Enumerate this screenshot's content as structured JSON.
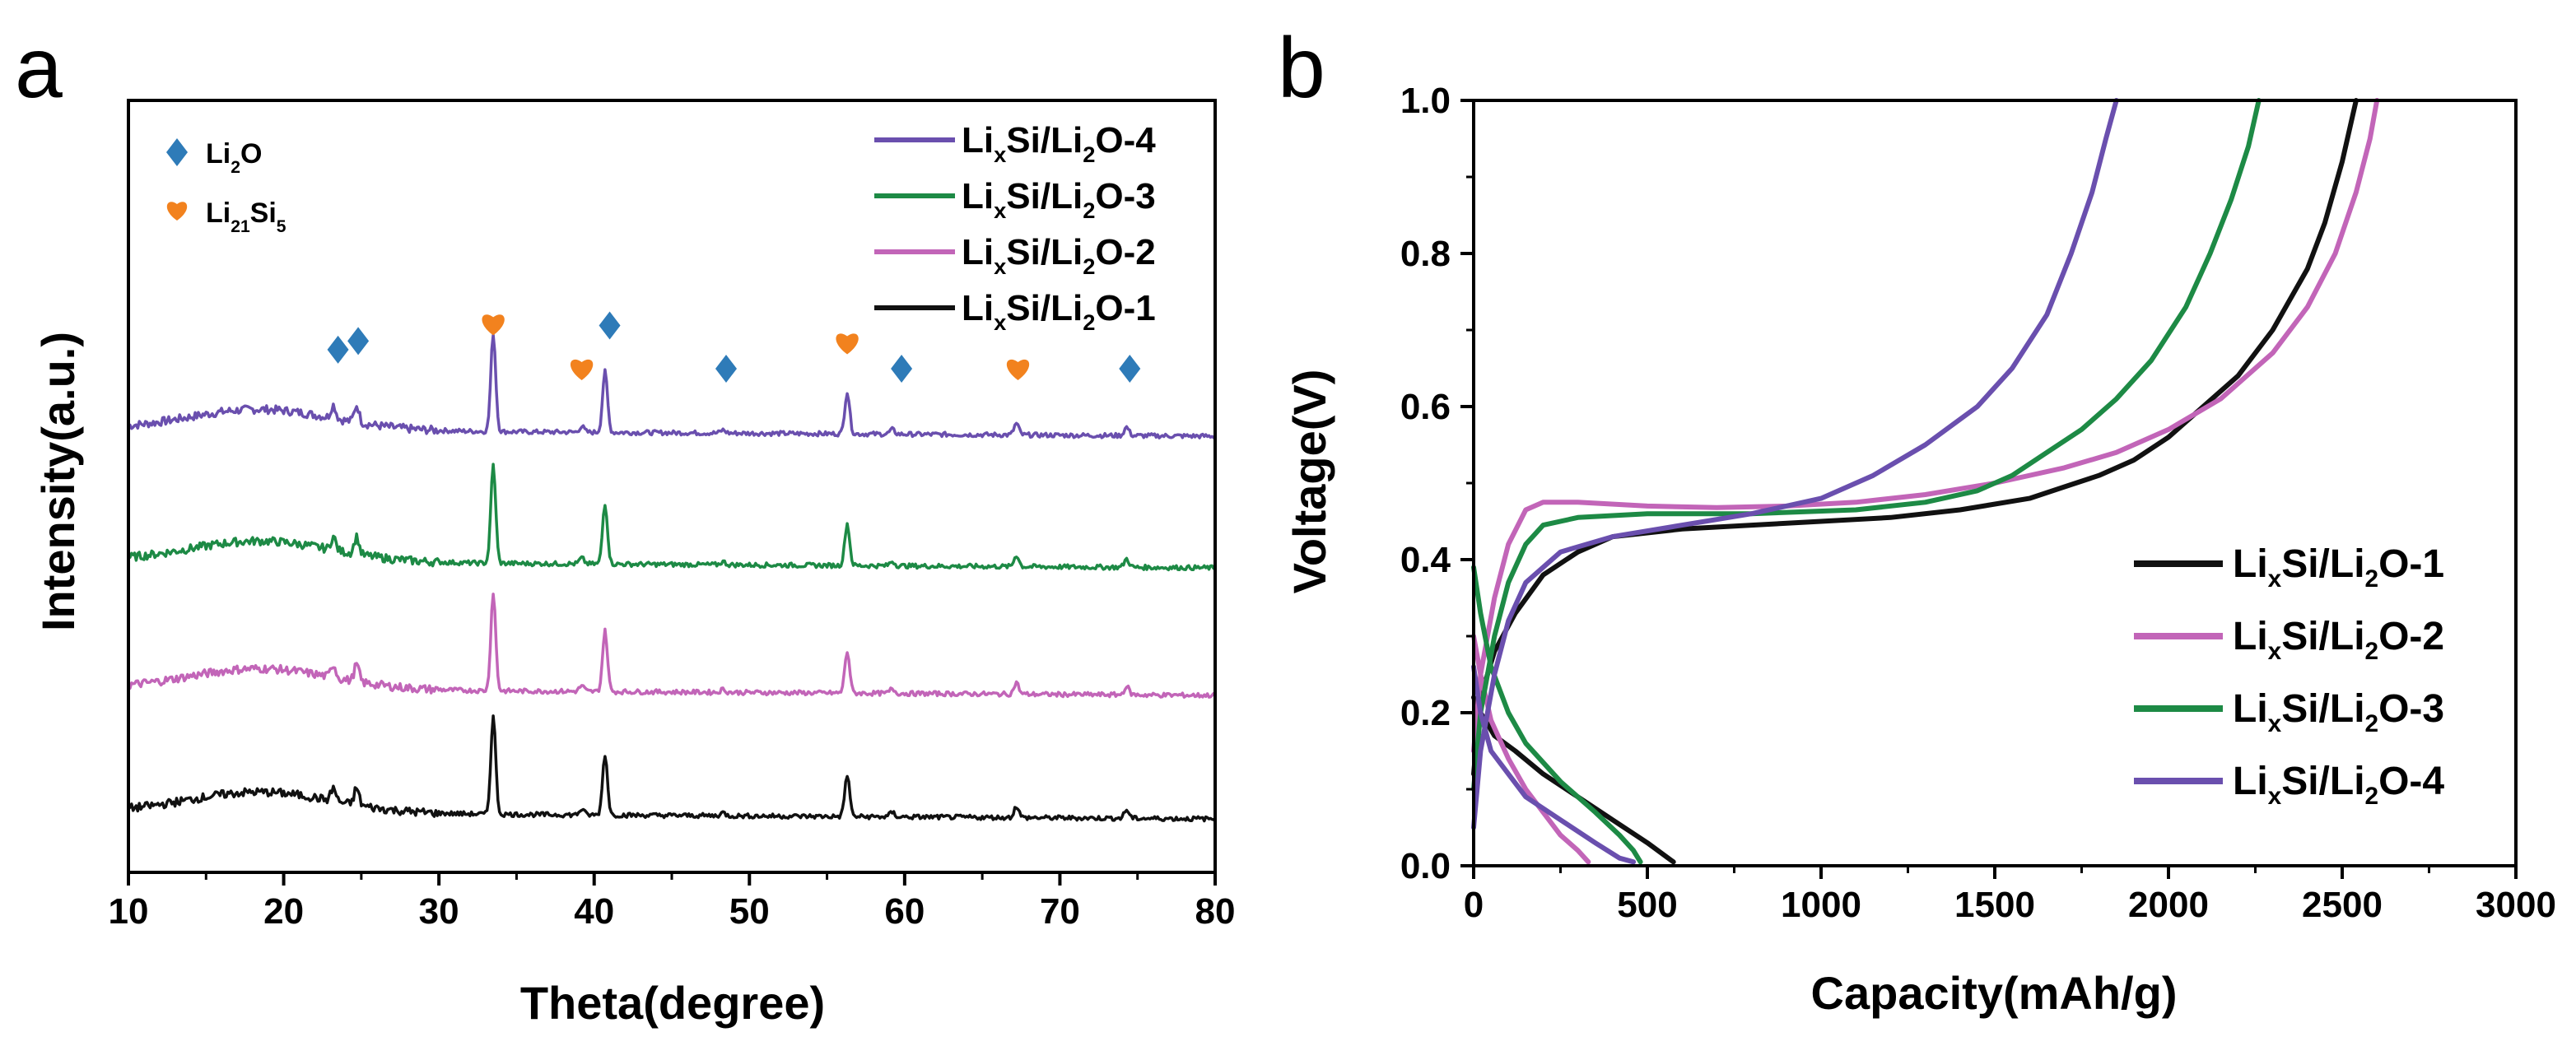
{
  "figure": {
    "panel_a_letter": "a",
    "panel_b_letter": "b"
  },
  "colors": {
    "black": "#111111",
    "pink": "#c265b8",
    "green": "#1d8a45",
    "purple": "#6a4fae",
    "li2o_marker": "#2e7bb8",
    "li21si5_marker": "#f2821e"
  },
  "chart_data": [
    {
      "panel": "a",
      "type": "line",
      "title": "",
      "xlabel": "Theta(degree)",
      "ylabel": "Intensity(a.u.)",
      "xlim": [
        10,
        80
      ],
      "xticks": [
        10,
        20,
        30,
        40,
        50,
        60,
        70,
        80
      ],
      "yticks_shown": false,
      "legend_placement": "top-right",
      "series": [
        {
          "name": "LixSi/Li2O-4",
          "legend_parts": [
            "Li",
            "x",
            "Si/Li",
            "2",
            "O-4"
          ],
          "color": "#6a4fae",
          "offset": 3
        },
        {
          "name": "LixSi/Li2O-3",
          "legend_parts": [
            "Li",
            "x",
            "Si/Li",
            "2",
            "O-3"
          ],
          "color": "#1d8a45",
          "offset": 2
        },
        {
          "name": "LixSi/Li2O-2",
          "legend_parts": [
            "Li",
            "x",
            "Si/Li",
            "2",
            "O-2"
          ],
          "color": "#c265b8",
          "offset": 1
        },
        {
          "name": "LixSi/Li2O-1",
          "legend_parts": [
            "Li",
            "x",
            "Si/Li",
            "2",
            "O-1"
          ],
          "color": "#111111",
          "offset": 0
        }
      ],
      "peaks": [
        {
          "x": 23.2,
          "h": 0.35
        },
        {
          "x": 24.7,
          "h": 0.45
        },
        {
          "x": 33.5,
          "h": 2.6
        },
        {
          "x": 39.2,
          "h": 0.15
        },
        {
          "x": 40.7,
          "h": 1.6
        },
        {
          "x": 48.3,
          "h": 0.08
        },
        {
          "x": 56.3,
          "h": 1.1
        },
        {
          "x": 59.2,
          "h": 0.12
        },
        {
          "x": 67.2,
          "h": 0.3
        },
        {
          "x": 74.3,
          "h": 0.22
        }
      ],
      "markers": [
        {
          "type": "Li2O",
          "x": 23.5,
          "level": 0.62
        },
        {
          "type": "Li2O",
          "x": 24.8,
          "level": 0.72
        },
        {
          "type": "Li21Si5",
          "x": 33.5,
          "level": 0.92
        },
        {
          "type": "Li21Si5",
          "x": 39.2,
          "level": 0.4
        },
        {
          "type": "Li2O",
          "x": 41.0,
          "level": 0.9
        },
        {
          "type": "Li2O",
          "x": 48.5,
          "level": 0.4
        },
        {
          "type": "Li21Si5",
          "x": 56.3,
          "level": 0.7
        },
        {
          "type": "Li2O",
          "x": 59.8,
          "level": 0.4
        },
        {
          "type": "Li21Si5",
          "x": 67.3,
          "level": 0.4
        },
        {
          "type": "Li2O",
          "x": 74.5,
          "level": 0.4
        }
      ],
      "marker_legend": [
        {
          "type": "Li2O",
          "parts": [
            "Li",
            "2",
            "O"
          ]
        },
        {
          "type": "Li21Si5",
          "parts": [
            "Li",
            "21",
            "Si",
            "5"
          ]
        }
      ]
    },
    {
      "panel": "b",
      "type": "line",
      "title": "",
      "xlabel": "Capacity(mAh/g)",
      "ylabel": "Voltage(V)",
      "xlim": [
        0,
        3000
      ],
      "ylim": [
        0.0,
        1.0
      ],
      "xticks": [
        0,
        500,
        1000,
        1500,
        2000,
        2500,
        3000
      ],
      "yticks": [
        0.0,
        0.2,
        0.4,
        0.6,
        0.8,
        1.0
      ],
      "xtick_labels": [
        "0",
        "500",
        "1000",
        "1500",
        "2000",
        "2500",
        "3000"
      ],
      "ytick_labels": [
        "0.0",
        "0.2",
        "0.4",
        "0.6",
        "0.8",
        "1.0"
      ],
      "legend_placement": "bottom-right",
      "series": [
        {
          "name": "LixSi/Li2O-1",
          "legend_parts": [
            "Li",
            "x",
            "Si/Li",
            "2",
            "O-1"
          ],
          "color": "#111111",
          "charge": [
            [
              0,
              0.12
            ],
            [
              20,
              0.22
            ],
            [
              60,
              0.28
            ],
            [
              120,
              0.33
            ],
            [
              200,
              0.38
            ],
            [
              300,
              0.41
            ],
            [
              400,
              0.43
            ],
            [
              600,
              0.44
            ],
            [
              800,
              0.445
            ],
            [
              1000,
              0.45
            ],
            [
              1200,
              0.455
            ],
            [
              1400,
              0.465
            ],
            [
              1600,
              0.48
            ],
            [
              1700,
              0.495
            ],
            [
              1800,
              0.51
            ],
            [
              1900,
              0.53
            ],
            [
              2000,
              0.56
            ],
            [
              2100,
              0.6
            ],
            [
              2200,
              0.64
            ],
            [
              2300,
              0.7
            ],
            [
              2400,
              0.78
            ],
            [
              2450,
              0.84
            ],
            [
              2500,
              0.92
            ],
            [
              2540,
              1.0
            ]
          ],
          "discharge": [
            [
              0,
              0.22
            ],
            [
              20,
              0.2
            ],
            [
              60,
              0.17
            ],
            [
              120,
              0.15
            ],
            [
              200,
              0.12
            ],
            [
              300,
              0.09
            ],
            [
              400,
              0.06
            ],
            [
              500,
              0.03
            ],
            [
              560,
              0.01
            ],
            [
              575,
              0.005
            ]
          ]
        },
        {
          "name": "LixSi/Li2O-2",
          "legend_parts": [
            "Li",
            "x",
            "Si/Li",
            "2",
            "O-2"
          ],
          "color": "#c265b8",
          "charge": [
            [
              0,
              0.15
            ],
            [
              20,
              0.25
            ],
            [
              60,
              0.35
            ],
            [
              100,
              0.42
            ],
            [
              150,
              0.465
            ],
            [
              200,
              0.475
            ],
            [
              300,
              0.475
            ],
            [
              500,
              0.47
            ],
            [
              700,
              0.468
            ],
            [
              900,
              0.47
            ],
            [
              1100,
              0.475
            ],
            [
              1300,
              0.485
            ],
            [
              1500,
              0.5
            ],
            [
              1700,
              0.52
            ],
            [
              1850,
              0.54
            ],
            [
              2000,
              0.57
            ],
            [
              2150,
              0.61
            ],
            [
              2300,
              0.67
            ],
            [
              2400,
              0.73
            ],
            [
              2480,
              0.8
            ],
            [
              2540,
              0.88
            ],
            [
              2580,
              0.95
            ],
            [
              2600,
              1.0
            ]
          ],
          "discharge": [
            [
              0,
              0.3
            ],
            [
              20,
              0.25
            ],
            [
              50,
              0.19
            ],
            [
              100,
              0.14
            ],
            [
              150,
              0.1
            ],
            [
              200,
              0.07
            ],
            [
              250,
              0.04
            ],
            [
              300,
              0.02
            ],
            [
              330,
              0.005
            ]
          ]
        },
        {
          "name": "LixSi/Li2O-3",
          "legend_parts": [
            "Li",
            "x",
            "Si/Li",
            "2",
            "O-3"
          ],
          "color": "#1d8a45",
          "charge": [
            [
              0,
              0.1
            ],
            [
              20,
              0.2
            ],
            [
              60,
              0.3
            ],
            [
              100,
              0.37
            ],
            [
              150,
              0.42
            ],
            [
              200,
              0.445
            ],
            [
              300,
              0.455
            ],
            [
              500,
              0.46
            ],
            [
              800,
              0.46
            ],
            [
              1100,
              0.465
            ],
            [
              1300,
              0.475
            ],
            [
              1450,
              0.49
            ],
            [
              1550,
              0.51
            ],
            [
              1650,
              0.54
            ],
            [
              1750,
              0.57
            ],
            [
              1850,
              0.61
            ],
            [
              1950,
              0.66
            ],
            [
              2050,
              0.73
            ],
            [
              2120,
              0.8
            ],
            [
              2180,
              0.87
            ],
            [
              2230,
              0.94
            ],
            [
              2260,
              1.0
            ]
          ],
          "discharge": [
            [
              0,
              0.39
            ],
            [
              20,
              0.33
            ],
            [
              50,
              0.26
            ],
            [
              100,
              0.2
            ],
            [
              150,
              0.16
            ],
            [
              250,
              0.11
            ],
            [
              350,
              0.07
            ],
            [
              420,
              0.04
            ],
            [
              460,
              0.02
            ],
            [
              480,
              0.005
            ]
          ]
        },
        {
          "name": "LixSi/Li2O-4",
          "legend_parts": [
            "Li",
            "x",
            "Si/Li",
            "2",
            "O-4"
          ],
          "color": "#6a4fae",
          "charge": [
            [
              0,
              0.05
            ],
            [
              20,
              0.15
            ],
            [
              60,
              0.25
            ],
            [
              100,
              0.32
            ],
            [
              150,
              0.37
            ],
            [
              250,
              0.41
            ],
            [
              400,
              0.43
            ],
            [
              600,
              0.445
            ],
            [
              800,
              0.46
            ],
            [
              1000,
              0.48
            ],
            [
              1150,
              0.51
            ],
            [
              1300,
              0.55
            ],
            [
              1450,
              0.6
            ],
            [
              1550,
              0.65
            ],
            [
              1650,
              0.72
            ],
            [
              1720,
              0.8
            ],
            [
              1780,
              0.88
            ],
            [
              1820,
              0.95
            ],
            [
              1850,
              1.0
            ]
          ],
          "discharge": [
            [
              0,
              0.26
            ],
            [
              20,
              0.2
            ],
            [
              50,
              0.15
            ],
            [
              100,
              0.12
            ],
            [
              150,
              0.09
            ],
            [
              250,
              0.06
            ],
            [
              350,
              0.03
            ],
            [
              420,
              0.01
            ],
            [
              460,
              0.005
            ]
          ]
        }
      ]
    }
  ]
}
